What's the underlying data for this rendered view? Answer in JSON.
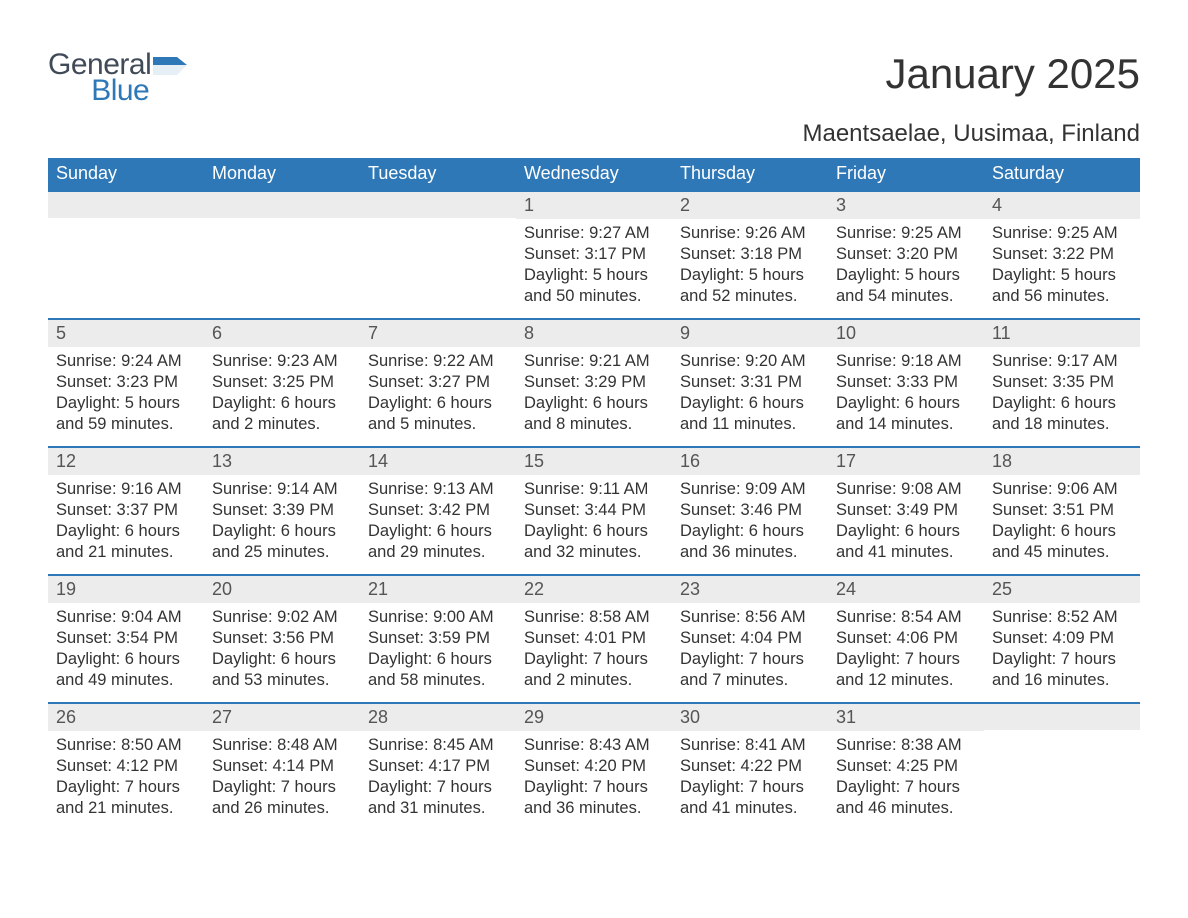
{
  "brand": {
    "word1": "General",
    "word2": "Blue",
    "flag_color": "#2e78b7",
    "text_color": "#404b57"
  },
  "title": "January 2025",
  "subtitle": "Maentsaelae, Uusimaa, Finland",
  "colors": {
    "header_bg": "#2e78b7",
    "header_text": "#ffffff",
    "dayhead_bg": "#ececec",
    "dayhead_border": "#2e78b7",
    "body_text": "#333333",
    "page_bg": "#ffffff"
  },
  "typography": {
    "title_fontsize": 42,
    "subtitle_fontsize": 24,
    "header_fontsize": 18,
    "daynum_fontsize": 18,
    "body_fontsize": 16.5
  },
  "layout": {
    "columns": 7,
    "rows": 5,
    "leading_blanks": 3,
    "trailing_blanks": 1
  },
  "weekdays": [
    "Sunday",
    "Monday",
    "Tuesday",
    "Wednesday",
    "Thursday",
    "Friday",
    "Saturday"
  ],
  "days": [
    {
      "n": "1",
      "sunrise": "Sunrise: 9:27 AM",
      "sunset": "Sunset: 3:17 PM",
      "d1": "Daylight: 5 hours",
      "d2": "and 50 minutes."
    },
    {
      "n": "2",
      "sunrise": "Sunrise: 9:26 AM",
      "sunset": "Sunset: 3:18 PM",
      "d1": "Daylight: 5 hours",
      "d2": "and 52 minutes."
    },
    {
      "n": "3",
      "sunrise": "Sunrise: 9:25 AM",
      "sunset": "Sunset: 3:20 PM",
      "d1": "Daylight: 5 hours",
      "d2": "and 54 minutes."
    },
    {
      "n": "4",
      "sunrise": "Sunrise: 9:25 AM",
      "sunset": "Sunset: 3:22 PM",
      "d1": "Daylight: 5 hours",
      "d2": "and 56 minutes."
    },
    {
      "n": "5",
      "sunrise": "Sunrise: 9:24 AM",
      "sunset": "Sunset: 3:23 PM",
      "d1": "Daylight: 5 hours",
      "d2": "and 59 minutes."
    },
    {
      "n": "6",
      "sunrise": "Sunrise: 9:23 AM",
      "sunset": "Sunset: 3:25 PM",
      "d1": "Daylight: 6 hours",
      "d2": "and 2 minutes."
    },
    {
      "n": "7",
      "sunrise": "Sunrise: 9:22 AM",
      "sunset": "Sunset: 3:27 PM",
      "d1": "Daylight: 6 hours",
      "d2": "and 5 minutes."
    },
    {
      "n": "8",
      "sunrise": "Sunrise: 9:21 AM",
      "sunset": "Sunset: 3:29 PM",
      "d1": "Daylight: 6 hours",
      "d2": "and 8 minutes."
    },
    {
      "n": "9",
      "sunrise": "Sunrise: 9:20 AM",
      "sunset": "Sunset: 3:31 PM",
      "d1": "Daylight: 6 hours",
      "d2": "and 11 minutes."
    },
    {
      "n": "10",
      "sunrise": "Sunrise: 9:18 AM",
      "sunset": "Sunset: 3:33 PM",
      "d1": "Daylight: 6 hours",
      "d2": "and 14 minutes."
    },
    {
      "n": "11",
      "sunrise": "Sunrise: 9:17 AM",
      "sunset": "Sunset: 3:35 PM",
      "d1": "Daylight: 6 hours",
      "d2": "and 18 minutes."
    },
    {
      "n": "12",
      "sunrise": "Sunrise: 9:16 AM",
      "sunset": "Sunset: 3:37 PM",
      "d1": "Daylight: 6 hours",
      "d2": "and 21 minutes."
    },
    {
      "n": "13",
      "sunrise": "Sunrise: 9:14 AM",
      "sunset": "Sunset: 3:39 PM",
      "d1": "Daylight: 6 hours",
      "d2": "and 25 minutes."
    },
    {
      "n": "14",
      "sunrise": "Sunrise: 9:13 AM",
      "sunset": "Sunset: 3:42 PM",
      "d1": "Daylight: 6 hours",
      "d2": "and 29 minutes."
    },
    {
      "n": "15",
      "sunrise": "Sunrise: 9:11 AM",
      "sunset": "Sunset: 3:44 PM",
      "d1": "Daylight: 6 hours",
      "d2": "and 32 minutes."
    },
    {
      "n": "16",
      "sunrise": "Sunrise: 9:09 AM",
      "sunset": "Sunset: 3:46 PM",
      "d1": "Daylight: 6 hours",
      "d2": "and 36 minutes."
    },
    {
      "n": "17",
      "sunrise": "Sunrise: 9:08 AM",
      "sunset": "Sunset: 3:49 PM",
      "d1": "Daylight: 6 hours",
      "d2": "and 41 minutes."
    },
    {
      "n": "18",
      "sunrise": "Sunrise: 9:06 AM",
      "sunset": "Sunset: 3:51 PM",
      "d1": "Daylight: 6 hours",
      "d2": "and 45 minutes."
    },
    {
      "n": "19",
      "sunrise": "Sunrise: 9:04 AM",
      "sunset": "Sunset: 3:54 PM",
      "d1": "Daylight: 6 hours",
      "d2": "and 49 minutes."
    },
    {
      "n": "20",
      "sunrise": "Sunrise: 9:02 AM",
      "sunset": "Sunset: 3:56 PM",
      "d1": "Daylight: 6 hours",
      "d2": "and 53 minutes."
    },
    {
      "n": "21",
      "sunrise": "Sunrise: 9:00 AM",
      "sunset": "Sunset: 3:59 PM",
      "d1": "Daylight: 6 hours",
      "d2": "and 58 minutes."
    },
    {
      "n": "22",
      "sunrise": "Sunrise: 8:58 AM",
      "sunset": "Sunset: 4:01 PM",
      "d1": "Daylight: 7 hours",
      "d2": "and 2 minutes."
    },
    {
      "n": "23",
      "sunrise": "Sunrise: 8:56 AM",
      "sunset": "Sunset: 4:04 PM",
      "d1": "Daylight: 7 hours",
      "d2": "and 7 minutes."
    },
    {
      "n": "24",
      "sunrise": "Sunrise: 8:54 AM",
      "sunset": "Sunset: 4:06 PM",
      "d1": "Daylight: 7 hours",
      "d2": "and 12 minutes."
    },
    {
      "n": "25",
      "sunrise": "Sunrise: 8:52 AM",
      "sunset": "Sunset: 4:09 PM",
      "d1": "Daylight: 7 hours",
      "d2": "and 16 minutes."
    },
    {
      "n": "26",
      "sunrise": "Sunrise: 8:50 AM",
      "sunset": "Sunset: 4:12 PM",
      "d1": "Daylight: 7 hours",
      "d2": "and 21 minutes."
    },
    {
      "n": "27",
      "sunrise": "Sunrise: 8:48 AM",
      "sunset": "Sunset: 4:14 PM",
      "d1": "Daylight: 7 hours",
      "d2": "and 26 minutes."
    },
    {
      "n": "28",
      "sunrise": "Sunrise: 8:45 AM",
      "sunset": "Sunset: 4:17 PM",
      "d1": "Daylight: 7 hours",
      "d2": "and 31 minutes."
    },
    {
      "n": "29",
      "sunrise": "Sunrise: 8:43 AM",
      "sunset": "Sunset: 4:20 PM",
      "d1": "Daylight: 7 hours",
      "d2": "and 36 minutes."
    },
    {
      "n": "30",
      "sunrise": "Sunrise: 8:41 AM",
      "sunset": "Sunset: 4:22 PM",
      "d1": "Daylight: 7 hours",
      "d2": "and 41 minutes."
    },
    {
      "n": "31",
      "sunrise": "Sunrise: 8:38 AM",
      "sunset": "Sunset: 4:25 PM",
      "d1": "Daylight: 7 hours",
      "d2": "and 46 minutes."
    }
  ]
}
